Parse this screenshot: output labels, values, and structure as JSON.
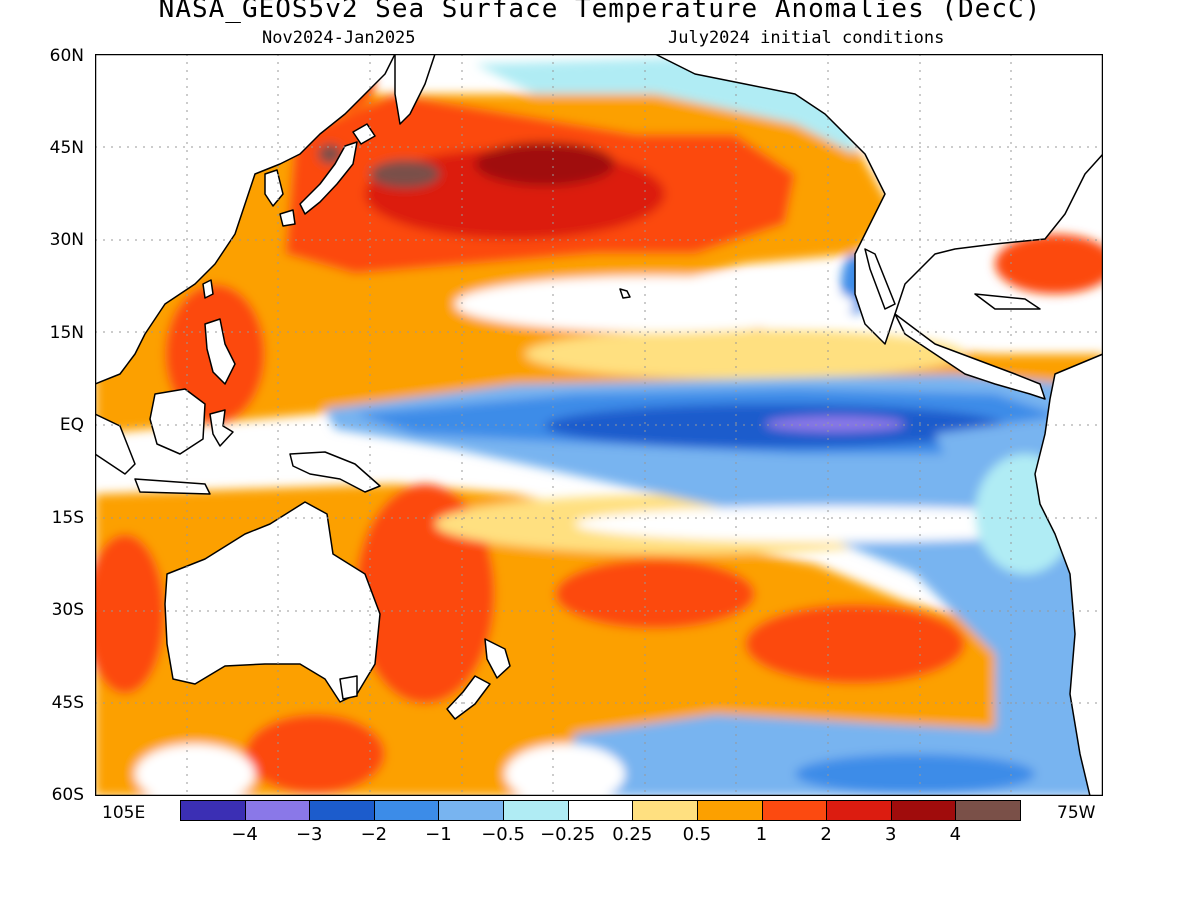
{
  "header": {
    "title": "NASA_GEOS5v2 Sea Surface Temperature Anomalies (DecC)",
    "period": "Nov2024-Jan2025",
    "initial_conditions": "July2024 initial conditions"
  },
  "axes": {
    "lat_labels": [
      "60N",
      "45N",
      "30N",
      "15N",
      "EQ",
      "15S",
      "30S",
      "45S",
      "60S"
    ],
    "lon_left": "105E",
    "lon_right": "75W"
  },
  "colorbar": {
    "labels": [
      "-4",
      "-3",
      "-2",
      "-1",
      "-0.5",
      "-0.25",
      "0.25",
      "0.5",
      "1",
      "2",
      "3",
      "4"
    ],
    "colors": [
      "#3b2fb4",
      "#8a78e8",
      "#1c5ccc",
      "#3c8ce8",
      "#78b4f0",
      "#b0ecf4",
      "#ffffff",
      "#ffe080",
      "#fca000",
      "#fc4a10",
      "#dc1c10",
      "#a00c0c",
      "#7a5048"
    ]
  },
  "map_colors": {
    "ocean_neutral": "#ffffff",
    "warm_light": "#ffe080",
    "warm": "#fca000",
    "warm_strong": "#fc4a10",
    "warm_stronger": "#dc1c10",
    "warm_extreme": "#a00c0c",
    "warm_max": "#7a5048",
    "cool_light": "#b0ecf4",
    "cool": "#78b4f0",
    "cool_mid": "#3c8ce8",
    "cool_strong": "#1c5ccc",
    "cool_extreme": "#8a78e8",
    "land": "#ffffff",
    "coast": "#000000",
    "grid": "#999999"
  }
}
